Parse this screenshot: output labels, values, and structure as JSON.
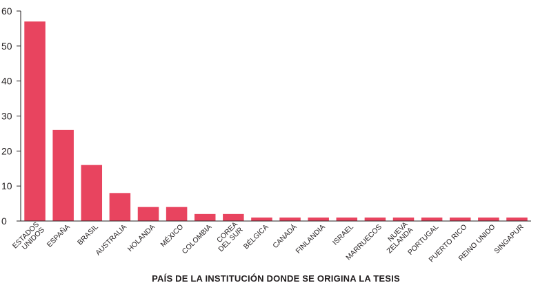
{
  "chart_data": {
    "type": "bar",
    "title": "",
    "xlabel": "PAÍS DE LA INSTITUCIÓN DONDE SE ORIGINA LA TESIS",
    "ylabel": "",
    "ylim": [
      0,
      60
    ],
    "yticks": [
      0,
      10,
      20,
      30,
      40,
      50,
      60
    ],
    "grid": false,
    "categories": [
      [
        "ESTADOS",
        "UNIDOS"
      ],
      [
        "ESPAÑA"
      ],
      [
        "BRASIL"
      ],
      [
        "AUSTRALIA"
      ],
      [
        "HOLANDA"
      ],
      [
        "MÉXICO"
      ],
      [
        "COLOMBIA"
      ],
      [
        "COREA",
        "DEL SUR"
      ],
      [
        "BÉLGICA"
      ],
      [
        "CANADÁ"
      ],
      [
        "FINLANDIA"
      ],
      [
        "ISRAEL"
      ],
      [
        "MARRUECOS"
      ],
      [
        "NUEVA",
        "ZELANDA"
      ],
      [
        "PORTUGAL"
      ],
      [
        "PUERTO RICO"
      ],
      [
        "REINO UNIDO"
      ],
      [
        "SINGAPUR"
      ]
    ],
    "values": [
      57,
      26,
      16,
      8,
      4,
      4,
      2,
      2,
      1,
      1,
      1,
      1,
      1,
      1,
      1,
      1,
      1,
      1
    ],
    "bar_color": "#e8445f",
    "axis_color": "#231f20"
  }
}
